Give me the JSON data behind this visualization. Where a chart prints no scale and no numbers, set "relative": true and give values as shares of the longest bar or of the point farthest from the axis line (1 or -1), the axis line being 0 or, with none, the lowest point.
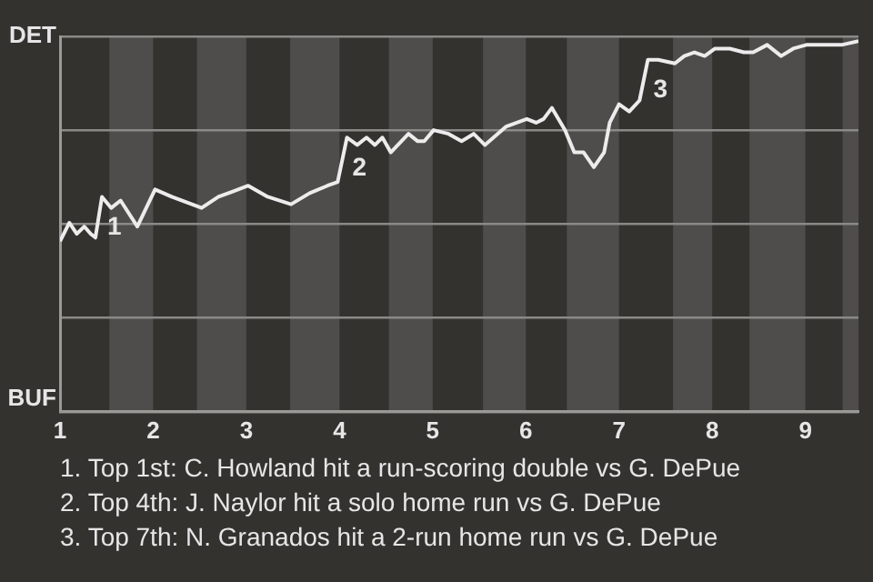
{
  "chart_data": {
    "type": "line",
    "relative": true,
    "x": [
      1,
      1.1,
      1.18,
      1.26,
      1.33,
      1.38,
      1.45,
      1.55,
      1.65,
      1.83,
      2.02,
      2.2,
      2.52,
      2.7,
      3.02,
      3.23,
      3.48,
      3.68,
      3.87,
      3.98,
      4.08,
      4.19,
      4.29,
      4.38,
      4.46,
      4.55,
      4.74,
      4.84,
      4.91,
      5.01,
      5.17,
      5.31,
      5.44,
      5.56,
      5.79,
      6.01,
      6.11,
      6.19,
      6.28,
      6.42,
      6.52,
      6.62,
      6.73,
      6.84,
      6.9,
      7,
      7.11,
      7.22,
      7.31,
      7.42,
      7.6,
      7.7,
      7.81,
      7.92,
      8.03,
      8.19,
      8.34,
      8.44,
      8.59,
      8.74,
      8.87,
      9.01,
      9.16,
      9.39,
      9.57
    ],
    "series": [
      {
        "color": "#ececec",
        "values": [
          0.46,
          0.51,
          0.48,
          0.5,
          0.48,
          0.47,
          0.58,
          0.55,
          0.57,
          0.5,
          0.6,
          0.58,
          0.55,
          0.58,
          0.61,
          0.58,
          0.56,
          0.59,
          0.61,
          0.62,
          0.74,
          0.72,
          0.74,
          0.72,
          0.74,
          0.7,
          0.75,
          0.73,
          0.73,
          0.76,
          0.75,
          0.73,
          0.75,
          0.72,
          0.77,
          0.79,
          0.78,
          0.79,
          0.82,
          0.76,
          0.7,
          0.7,
          0.66,
          0.7,
          0.78,
          0.83,
          0.81,
          0.84,
          0.95,
          0.95,
          0.94,
          0.96,
          0.97,
          0.96,
          0.98,
          0.98,
          0.97,
          0.97,
          0.99,
          0.96,
          0.98,
          0.99,
          0.99,
          0.99,
          1
        ]
      }
    ],
    "xlim": [
      1,
      9.57
    ],
    "xticks": [
      1,
      2,
      3,
      4,
      5,
      6,
      7,
      8,
      9
    ],
    "grid": "y",
    "legend": false,
    "marker": "none",
    "line_style": "solid",
    "bands": [
      {
        "axis": "x",
        "from": 1.53,
        "to": 2,
        "color": "#4e4d4b"
      },
      {
        "axis": "x",
        "from": 2.47,
        "to": 3,
        "color": "#4e4d4b"
      },
      {
        "axis": "x",
        "from": 3.47,
        "to": 4,
        "color": "#4e4d4b"
      },
      {
        "axis": "x",
        "from": 4.53,
        "to": 5,
        "color": "#4e4d4b"
      },
      {
        "axis": "x",
        "from": 5.54,
        "to": 6,
        "color": "#4e4d4b"
      },
      {
        "axis": "x",
        "from": 6.44,
        "to": 7,
        "color": "#4e4d4b"
      },
      {
        "axis": "x",
        "from": 7.58,
        "to": 8,
        "color": "#4e4d4b"
      },
      {
        "axis": "x",
        "from": 8.4,
        "to": 9,
        "color": "#4e4d4b"
      },
      {
        "axis": "x",
        "from": 9.4,
        "to": 9.57,
        "color": "#4e4d4b"
      }
    ],
    "annotations": [
      "DET",
      "BUF",
      {
        "text": "1",
        "x": 1.45,
        "y": 0.58
      },
      {
        "text": "2",
        "x": 4.08,
        "y": 0.74
      },
      {
        "text": "3",
        "x": 7.31,
        "y": 0.95
      },
      "1. Top 1st: C. Howland hit a run-scoring double vs G. DePue",
      "2. Top 4th: J. Naylor hit a solo home run vs G. DePue",
      "3. Top 7th: N. Granados hit a 2-run home run vs G. DePue"
    ]
  }
}
